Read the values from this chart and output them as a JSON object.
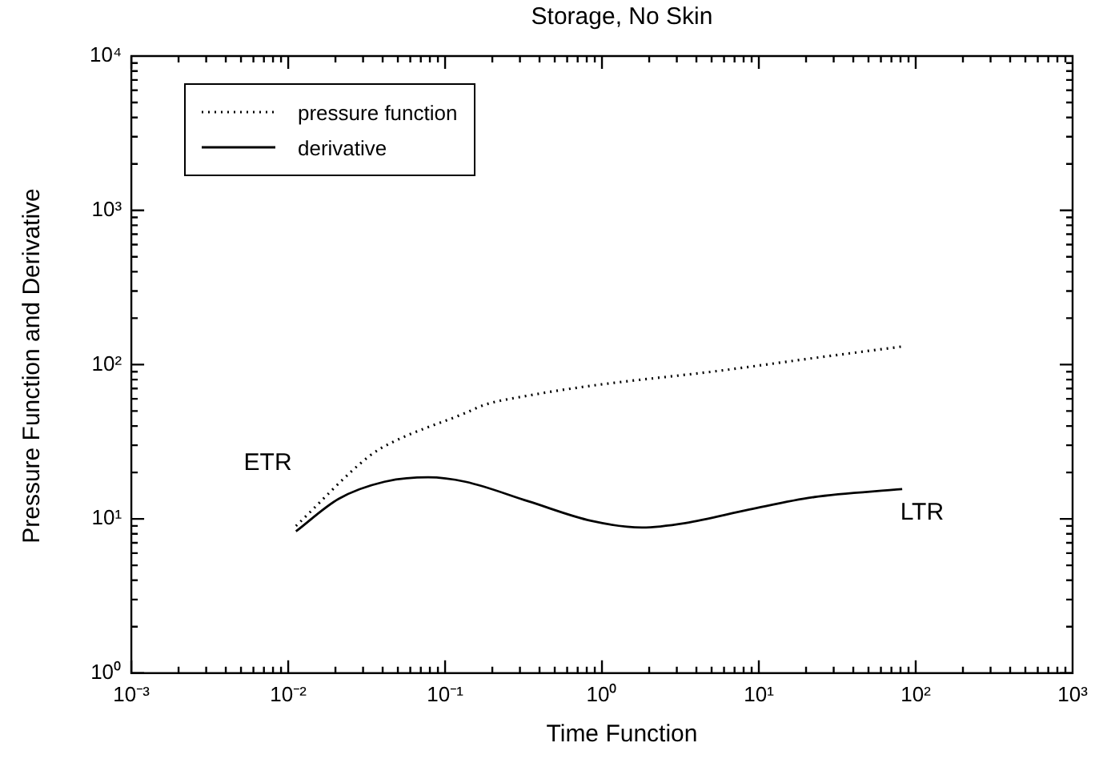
{
  "chart_data": {
    "type": "line",
    "title": "Storage, No Skin",
    "xlabel": "Time Function",
    "ylabel": "Pressure Function and Derivative",
    "log": "xy",
    "grid": false,
    "legend": "top left",
    "marker": "none",
    "xlim": [
      0.001,
      1000
    ],
    "xticks": [
      {
        "value": 0.001,
        "label": "10⁻³"
      },
      {
        "value": 0.01,
        "label": "10⁻²"
      },
      {
        "value": 0.1,
        "label": "10⁻¹"
      },
      {
        "value": 1,
        "label": "10⁰"
      },
      {
        "value": 10,
        "label": "10¹"
      },
      {
        "value": 100,
        "label": "10²"
      },
      {
        "value": 1000,
        "label": "10³"
      }
    ],
    "ylim": [
      1,
      10000
    ],
    "yticks": [
      {
        "value": 1,
        "label": "10⁰"
      },
      {
        "value": 10,
        "label": "10¹"
      },
      {
        "value": 100,
        "label": "10²"
      },
      {
        "value": 1000,
        "label": "10³"
      },
      {
        "value": 10000,
        "label": "10⁴"
      }
    ],
    "series": [
      {
        "name": "pressure function",
        "color": "#000000",
        "line_style": "dotted",
        "x": [
          0.0112,
          0.033,
          0.045,
          0.135,
          0.18,
          0.34,
          0.86,
          5.5,
          22,
          82
        ],
        "values": [
          9.0,
          25.6,
          31,
          48.6,
          55,
          63,
          73,
          91,
          110,
          131
        ]
      },
      {
        "name": "derivative",
        "color": "#000000",
        "line_style": "solid",
        "x": [
          0.0112,
          0.021,
          0.041,
          0.078,
          0.135,
          0.34,
          0.86,
          1.8,
          3.4,
          8.7,
          22,
          82
        ],
        "values": [
          8.3,
          13.5,
          17.4,
          18.6,
          17.4,
          13,
          9.7,
          8.8,
          9.4,
          11.5,
          13.8,
          15.6
        ]
      }
    ],
    "annotations": [
      "ETR",
      "LTR"
    ]
  }
}
